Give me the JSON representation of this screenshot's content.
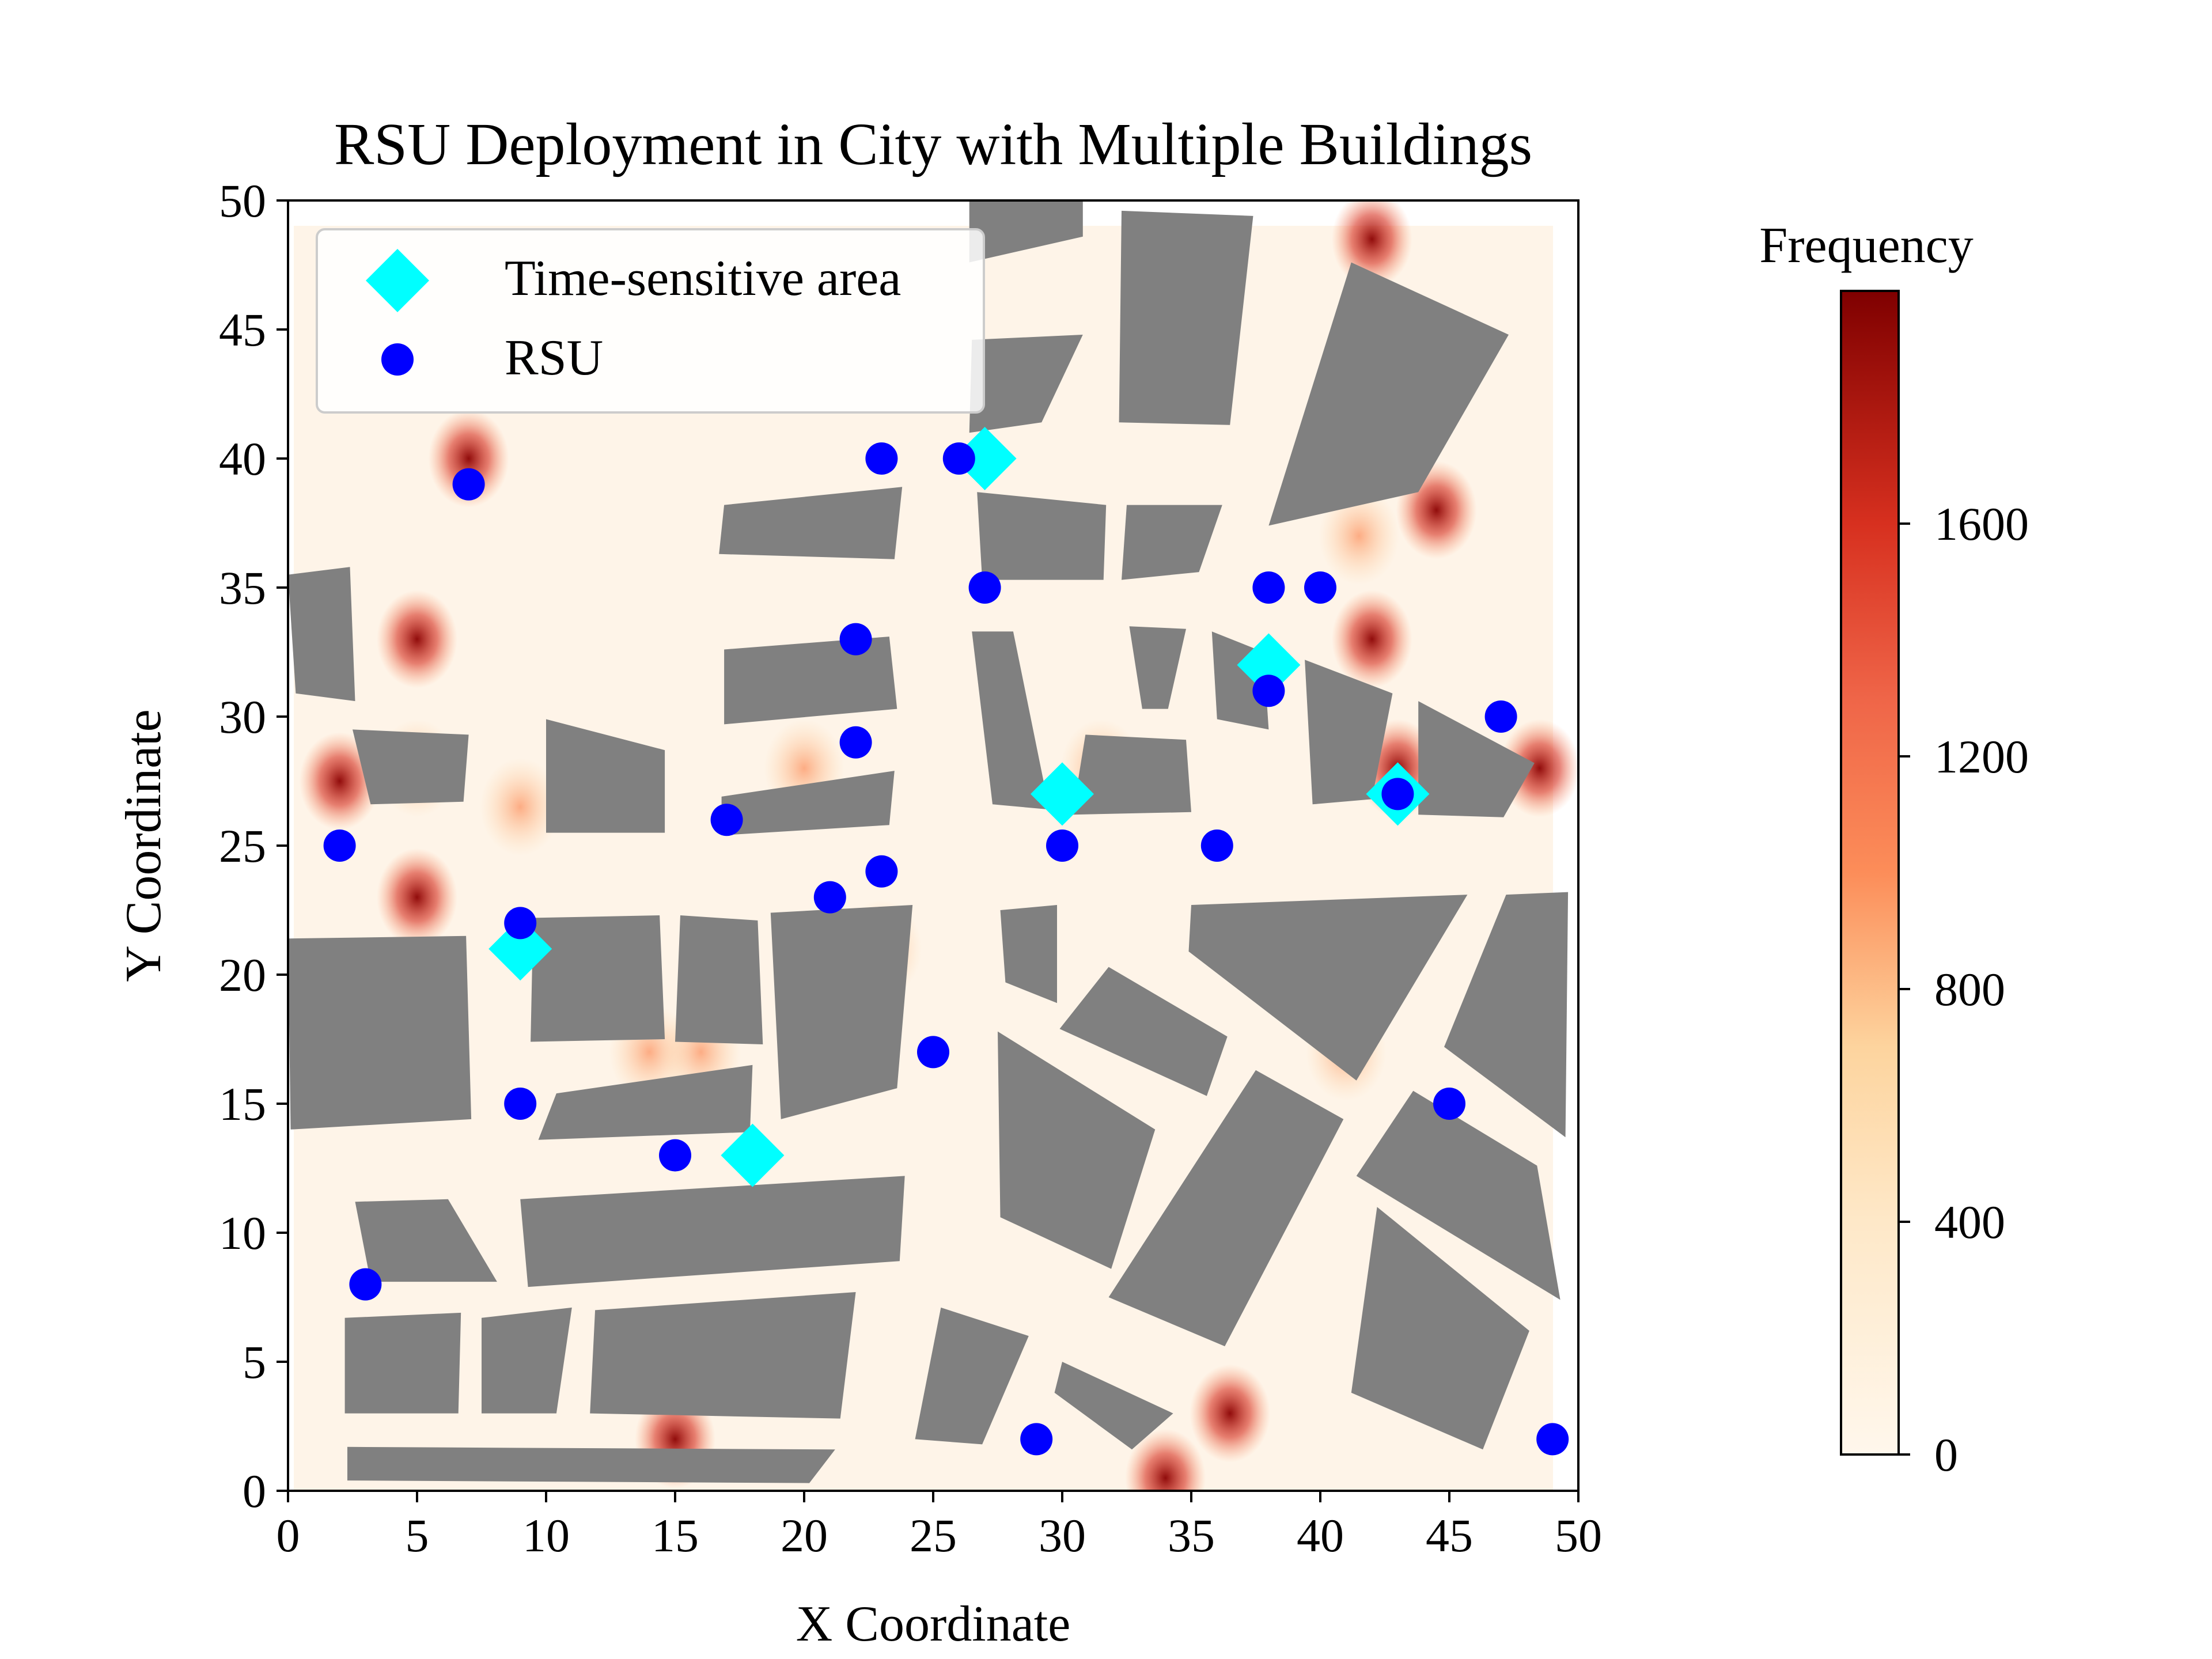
{
  "chart_data": {
    "type": "scatter",
    "title": "RSU Deployment in City with Multiple Buildings",
    "xlabel": "X Coordinate",
    "ylabel": "Y Coordinate",
    "xlim": [
      0,
      50
    ],
    "ylim": [
      0,
      50
    ],
    "xticks": [
      "0",
      "5",
      "10",
      "15",
      "20",
      "25",
      "30",
      "35",
      "40",
      "45",
      "50"
    ],
    "yticks": [
      "0",
      "5",
      "10",
      "15",
      "20",
      "25",
      "30",
      "35",
      "40",
      "45",
      "50"
    ],
    "grid": false,
    "legend": {
      "placement": "top-left",
      "entries": [
        {
          "label": "Time-sensitive area",
          "marker": "diamond",
          "color": "#00FFFF"
        },
        {
          "label": "RSU",
          "marker": "circle",
          "color": "#0000FF"
        }
      ]
    },
    "colorbar": {
      "label": "Frequency",
      "colormap": "OrRd",
      "range": [
        0,
        2000
      ],
      "ticks": [
        "0",
        "400",
        "800",
        "1200",
        "1600"
      ]
    },
    "series": [
      {
        "name": "Time-sensitive area",
        "marker": "diamond",
        "color": "#00FFFF",
        "points": [
          [
            27,
            40
          ],
          [
            38,
            32
          ],
          [
            30,
            27
          ],
          [
            43,
            27
          ],
          [
            9,
            21
          ],
          [
            18,
            13
          ]
        ]
      },
      {
        "name": "RSU",
        "marker": "circle",
        "color": "#0000FF",
        "points": [
          [
            7,
            39
          ],
          [
            23,
            40
          ],
          [
            26,
            40
          ],
          [
            27,
            35
          ],
          [
            38,
            35
          ],
          [
            40,
            35
          ],
          [
            22,
            33
          ],
          [
            38,
            31
          ],
          [
            47,
            30
          ],
          [
            22,
            29
          ],
          [
            43,
            27
          ],
          [
            17,
            26
          ],
          [
            2,
            25
          ],
          [
            30,
            25
          ],
          [
            36,
            25
          ],
          [
            23,
            24
          ],
          [
            21,
            23
          ],
          [
            9,
            22
          ],
          [
            25,
            17
          ],
          [
            9,
            15
          ],
          [
            45,
            15
          ],
          [
            15,
            13
          ],
          [
            3,
            8
          ],
          [
            29,
            2
          ],
          [
            49,
            2
          ]
        ]
      }
    ],
    "buildings": [
      [
        [
          2.5,
          29.5
        ],
        [
          3.2,
          26.6
        ],
        [
          6.8,
          26.7
        ],
        [
          7.0,
          29.3
        ]
      ],
      [
        [
          0,
          35.5
        ],
        [
          2.4,
          35.8
        ],
        [
          2.6,
          30.6
        ],
        [
          0.3,
          30.9
        ]
      ],
      [
        [
          0,
          21.4
        ],
        [
          6.9,
          21.5
        ],
        [
          7.1,
          14.4
        ],
        [
          0.1,
          14
        ]
      ],
      [
        [
          9.5,
          22.2
        ],
        [
          14.4,
          22.3
        ],
        [
          14.6,
          17.5
        ],
        [
          9.4,
          17.4
        ]
      ],
      [
        [
          15.2,
          22.3
        ],
        [
          18.2,
          22.1
        ],
        [
          18.4,
          17.3
        ],
        [
          15,
          17.4
        ]
      ],
      [
        [
          18.7,
          22.4
        ],
        [
          24.2,
          22.7
        ],
        [
          23.6,
          15.6
        ],
        [
          19.1,
          14.4
        ]
      ],
      [
        [
          10.4,
          15.4
        ],
        [
          18,
          16.5
        ],
        [
          17.9,
          13.9
        ],
        [
          9.7,
          13.6
        ]
      ],
      [
        [
          2.6,
          11.2
        ],
        [
          6.2,
          11.3
        ],
        [
          8.1,
          8.1
        ],
        [
          3.2,
          8.1
        ]
      ],
      [
        [
          9.0,
          11.3
        ],
        [
          23.9,
          12.2
        ],
        [
          23.7,
          8.9
        ],
        [
          9.3,
          7.9
        ]
      ],
      [
        [
          2.2,
          6.7
        ],
        [
          6.7,
          6.9
        ],
        [
          6.6,
          3.0
        ],
        [
          2.2,
          3.0
        ]
      ],
      [
        [
          7.5,
          6.7
        ],
        [
          11,
          7.1
        ],
        [
          10.4,
          3.0
        ],
        [
          7.5,
          3.0
        ]
      ],
      [
        [
          11.9,
          7.0
        ],
        [
          22,
          7.7
        ],
        [
          21.4,
          2.8
        ],
        [
          11.7,
          3.0
        ]
      ],
      [
        [
          2.3,
          1.7
        ],
        [
          21.2,
          1.6
        ],
        [
          20.2,
          0.3
        ],
        [
          2.3,
          0.4
        ]
      ],
      [
        [
          10.0,
          29.9
        ],
        [
          14.6,
          28.7
        ],
        [
          14.6,
          25.5
        ],
        [
          10.0,
          25.5
        ]
      ],
      [
        [
          16.9,
          38.2
        ],
        [
          23.8,
          38.9
        ],
        [
          23.5,
          36.1
        ],
        [
          16.7,
          36.3
        ]
      ],
      [
        [
          16.9,
          32.6
        ],
        [
          23.3,
          33.1
        ],
        [
          23.6,
          30.3
        ],
        [
          16.9,
          29.7
        ]
      ],
      [
        [
          16.8,
          26.9
        ],
        [
          23.5,
          27.9
        ],
        [
          23.3,
          25.8
        ],
        [
          16.8,
          25.4
        ]
      ],
      [
        [
          26.7,
          38.7
        ],
        [
          31.7,
          38.2
        ],
        [
          31.6,
          35.3
        ],
        [
          26.9,
          35.3
        ]
      ],
      [
        [
          32.5,
          38.2
        ],
        [
          36.2,
          38.2
        ],
        [
          35.3,
          35.6
        ],
        [
          32.3,
          35.3
        ]
      ],
      [
        [
          26.5,
          44.6
        ],
        [
          30.8,
          44.8
        ],
        [
          29.2,
          41.4
        ],
        [
          26.4,
          41.0
        ]
      ],
      [
        [
          26.4,
          50
        ],
        [
          30.8,
          50
        ],
        [
          30.8,
          48.6
        ],
        [
          26.4,
          47.6
        ]
      ],
      [
        [
          32.3,
          49.6
        ],
        [
          37.4,
          49.4
        ],
        [
          36.5,
          41.3
        ],
        [
          32.2,
          41.4
        ]
      ],
      [
        [
          41.2,
          47.6
        ],
        [
          47.3,
          44.8
        ],
        [
          43.8,
          38.7
        ],
        [
          38.0,
          37.4
        ]
      ],
      [
        [
          26.5,
          33.3
        ],
        [
          28.1,
          33.3
        ],
        [
          29.5,
          26.4
        ],
        [
          27.3,
          26.6
        ]
      ],
      [
        [
          32.6,
          33.5
        ],
        [
          34.8,
          33.4
        ],
        [
          34.1,
          30.3
        ],
        [
          33.1,
          30.3
        ]
      ],
      [
        [
          35.8,
          33.3
        ],
        [
          37.8,
          32.5
        ],
        [
          38.0,
          29.5
        ],
        [
          36.0,
          29.9
        ]
      ],
      [
        [
          30.9,
          29.3
        ],
        [
          34.8,
          29.1
        ],
        [
          35.0,
          26.3
        ],
        [
          30.4,
          26.2
        ]
      ],
      [
        [
          39.4,
          32.2
        ],
        [
          42.8,
          30.9
        ],
        [
          42.0,
          26.8
        ],
        [
          39.7,
          26.6
        ]
      ],
      [
        [
          43.8,
          30.6
        ],
        [
          48.3,
          28.2
        ],
        [
          47.1,
          26.1
        ],
        [
          43.8,
          26.2
        ]
      ],
      [
        [
          27.6,
          22.5
        ],
        [
          29.8,
          22.7
        ],
        [
          29.8,
          18.9
        ],
        [
          27.8,
          19.7
        ]
      ],
      [
        [
          35.0,
          22.7
        ],
        [
          45.7,
          23.1
        ],
        [
          41.4,
          15.9
        ],
        [
          34.9,
          20.9
        ]
      ],
      [
        [
          47.2,
          23.1
        ],
        [
          49.6,
          23.2
        ],
        [
          49.5,
          13.7
        ],
        [
          44.8,
          17.2
        ]
      ],
      [
        [
          31.8,
          20.3
        ],
        [
          36.4,
          17.6
        ],
        [
          35.6,
          15.3
        ],
        [
          29.9,
          17.9
        ]
      ],
      [
        [
          27.5,
          17.8
        ],
        [
          33.6,
          14.0
        ],
        [
          31.9,
          8.6
        ],
        [
          27.6,
          10.6
        ]
      ],
      [
        [
          37.5,
          16.3
        ],
        [
          40.9,
          14.4
        ],
        [
          36.3,
          5.6
        ],
        [
          31.8,
          7.5
        ]
      ],
      [
        [
          43.6,
          15.5
        ],
        [
          48.4,
          12.6
        ],
        [
          49.3,
          7.4
        ],
        [
          41.4,
          12.2
        ]
      ],
      [
        [
          42.2,
          11.0
        ],
        [
          48.1,
          6.2
        ],
        [
          46.3,
          1.6
        ],
        [
          41.2,
          3.8
        ]
      ],
      [
        [
          25.3,
          7.1
        ],
        [
          28.7,
          6.0
        ],
        [
          26.9,
          1.8
        ],
        [
          24.3,
          2.0
        ]
      ],
      [
        [
          30.0,
          5.0
        ],
        [
          34.3,
          3.0
        ],
        [
          32.7,
          1.6
        ],
        [
          29.7,
          3.8
        ]
      ]
    ]
  }
}
